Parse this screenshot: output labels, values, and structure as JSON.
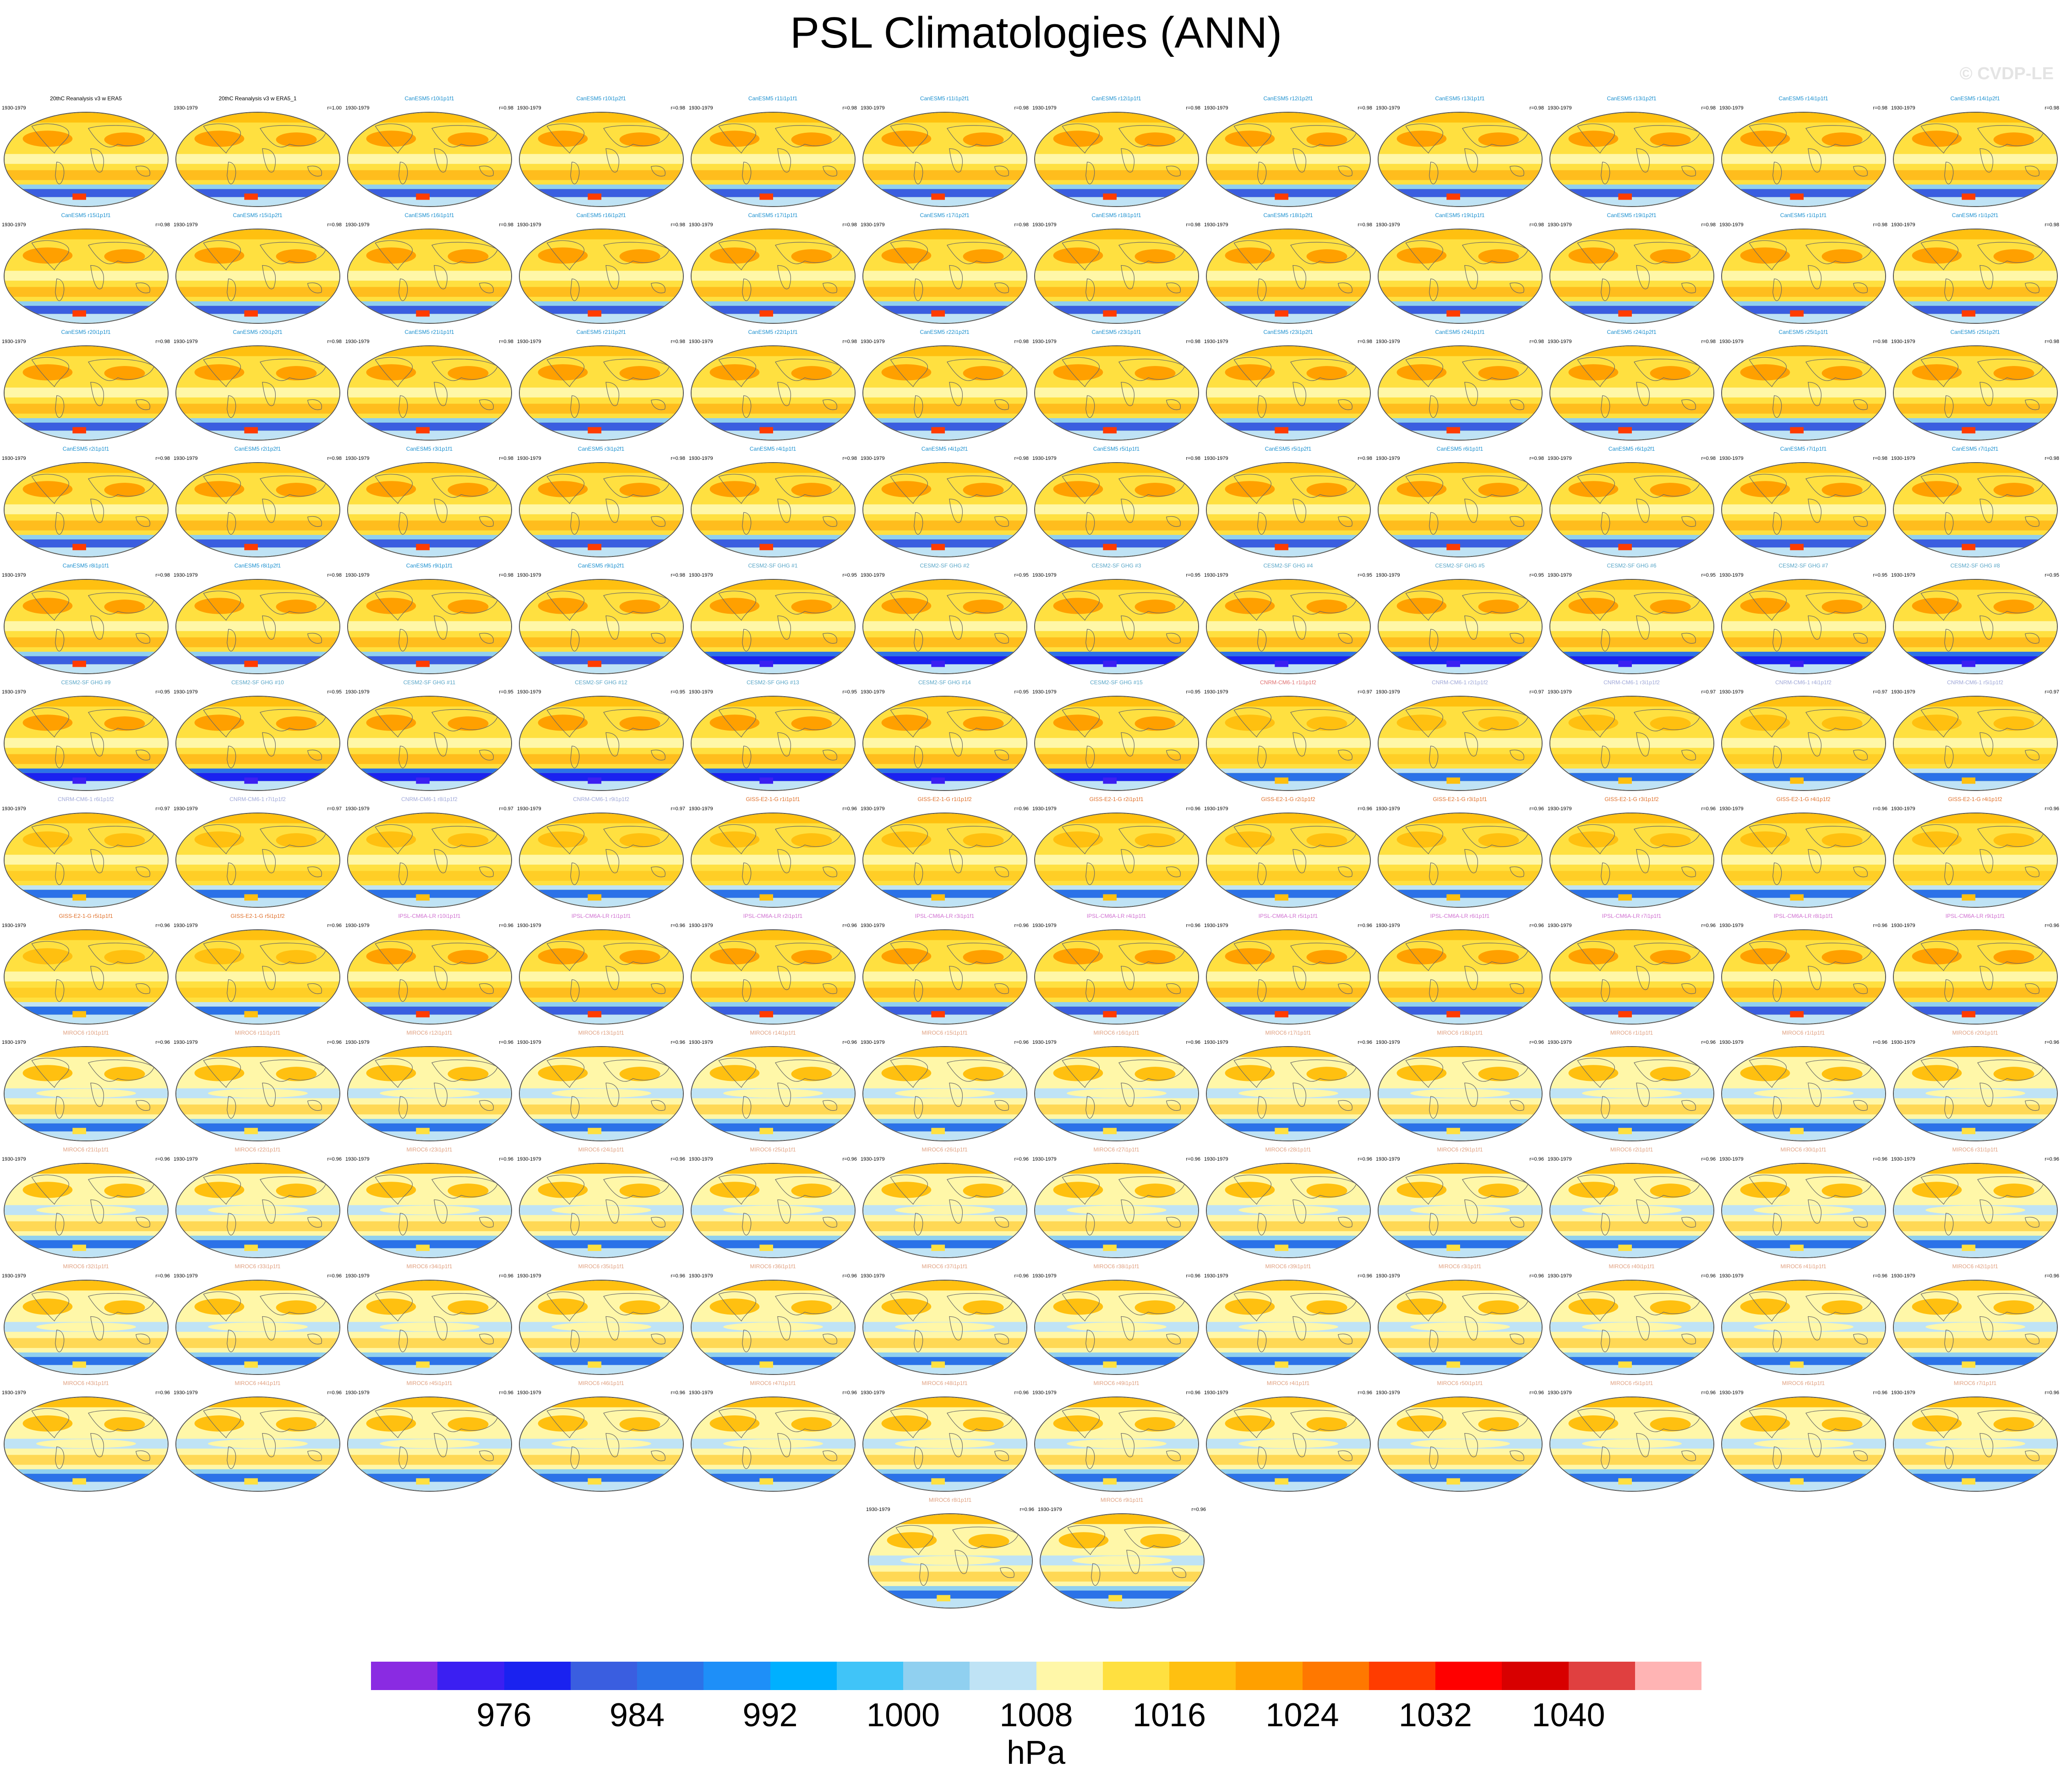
{
  "title": "PSL Climatologies (ANN)",
  "watermark": "© CVDP-LE",
  "period": "1930-1979",
  "colorbar": {
    "units": "hPa",
    "colors": [
      "#8a2be2",
      "#3b1ff2",
      "#1a22f0",
      "#3a5ee0",
      "#2b72e8",
      "#1e8ff8",
      "#00b0ff",
      "#40c4f8",
      "#90d0f0",
      "#bfe3f5",
      "#fff7a8",
      "#ffe040",
      "#ffc010",
      "#ffa000",
      "#ff7800",
      "#ff3c00",
      "#ff0000",
      "#d80000",
      "#e04040",
      "#ffb4b4"
    ],
    "labels": [
      "976",
      "984",
      "992",
      "1000",
      "1008",
      "1016",
      "1024",
      "1032",
      "1040"
    ]
  },
  "group_colors": {
    "obs": "#000000",
    "canesm": "#1a8fcf",
    "cesm": "#57a5c7",
    "cnrm": "#a0a8d8",
    "cnrm_first": "#e07070",
    "giss": "#e0702a",
    "ipsl": "#d070d0",
    "miroc": "#e0a080"
  },
  "panels": [
    {
      "title": "20thC Reanalysis v3 w ERA5",
      "corr": "",
      "group": "obs",
      "style": 0
    },
    {
      "title": "20thC Reanalysis v3 w ERA5_1",
      "corr": "r=1.00",
      "group": "obs",
      "style": 0
    },
    {
      "title": "CanESM5 r10i1p1f1",
      "corr": "r=0.98",
      "group": "canesm",
      "style": 0
    },
    {
      "title": "CanESM5 r10i1p2f1",
      "corr": "r=0.98",
      "group": "canesm",
      "style": 0
    },
    {
      "title": "CanESM5 r11i1p1f1",
      "corr": "r=0.98",
      "group": "canesm",
      "style": 0
    },
    {
      "title": "CanESM5 r11i1p2f1",
      "corr": "r=0.98",
      "group": "canesm",
      "style": 0
    },
    {
      "title": "CanESM5 r12i1p1f1",
      "corr": "r=0.98",
      "group": "canesm",
      "style": 0
    },
    {
      "title": "CanESM5 r12i1p2f1",
      "corr": "r=0.98",
      "group": "canesm",
      "style": 0
    },
    {
      "title": "CanESM5 r13i1p1f1",
      "corr": "r=0.98",
      "group": "canesm",
      "style": 0
    },
    {
      "title": "CanESM5 r13i1p2f1",
      "corr": "r=0.98",
      "group": "canesm",
      "style": 0
    },
    {
      "title": "CanESM5 r14i1p1f1",
      "corr": "r=0.98",
      "group": "canesm",
      "style": 0
    },
    {
      "title": "CanESM5 r14i1p2f1",
      "corr": "r=0.98",
      "group": "canesm",
      "style": 0
    },
    {
      "title": "CanESM5 r15i1p1f1",
      "corr": "r=0.98",
      "group": "canesm",
      "style": 0
    },
    {
      "title": "CanESM5 r15i1p2f1",
      "corr": "r=0.98",
      "group": "canesm",
      "style": 0
    },
    {
      "title": "CanESM5 r16i1p1f1",
      "corr": "r=0.98",
      "group": "canesm",
      "style": 0
    },
    {
      "title": "CanESM5 r16i1p2f1",
      "corr": "r=0.98",
      "group": "canesm",
      "style": 0
    },
    {
      "title": "CanESM5 r17i1p1f1",
      "corr": "r=0.98",
      "group": "canesm",
      "style": 0
    },
    {
      "title": "CanESM5 r17i1p2f1",
      "corr": "r=0.98",
      "group": "canesm",
      "style": 0
    },
    {
      "title": "CanESM5 r18i1p1f1",
      "corr": "r=0.98",
      "group": "canesm",
      "style": 0
    },
    {
      "title": "CanESM5 r18i1p2f1",
      "corr": "r=0.98",
      "group": "canesm",
      "style": 0
    },
    {
      "title": "CanESM5 r19i1p1f1",
      "corr": "r=0.98",
      "group": "canesm",
      "style": 0
    },
    {
      "title": "CanESM5 r19i1p2f1",
      "corr": "r=0.98",
      "group": "canesm",
      "style": 0
    },
    {
      "title": "CanESM5 r1i1p1f1",
      "corr": "r=0.98",
      "group": "canesm",
      "style": 0
    },
    {
      "title": "CanESM5 r1i1p2f1",
      "corr": "r=0.98",
      "group": "canesm",
      "style": 0
    },
    {
      "title": "CanESM5 r20i1p1f1",
      "corr": "r=0.98",
      "group": "canesm",
      "style": 0
    },
    {
      "title": "CanESM5 r20i1p2f1",
      "corr": "r=0.98",
      "group": "canesm",
      "style": 0
    },
    {
      "title": "CanESM5 r21i1p1f1",
      "corr": "r=0.98",
      "group": "canesm",
      "style": 0
    },
    {
      "title": "CanESM5 r21i1p2f1",
      "corr": "r=0.98",
      "group": "canesm",
      "style": 0
    },
    {
      "title": "CanESM5 r22i1p1f1",
      "corr": "r=0.98",
      "group": "canesm",
      "style": 0
    },
    {
      "title": "CanESM5 r22i1p2f1",
      "corr": "r=0.98",
      "group": "canesm",
      "style": 0
    },
    {
      "title": "CanESM5 r23i1p1f1",
      "corr": "r=0.98",
      "group": "canesm",
      "style": 0
    },
    {
      "title": "CanESM5 r23i1p2f1",
      "corr": "r=0.98",
      "group": "canesm",
      "style": 0
    },
    {
      "title": "CanESM5 r24i1p1f1",
      "corr": "r=0.98",
      "group": "canesm",
      "style": 0
    },
    {
      "title": "CanESM5 r24i1p2f1",
      "corr": "r=0.98",
      "group": "canesm",
      "style": 0
    },
    {
      "title": "CanESM5 r25i1p1f1",
      "corr": "r=0.98",
      "group": "canesm",
      "style": 0
    },
    {
      "title": "CanESM5 r25i1p2f1",
      "corr": "r=0.98",
      "group": "canesm",
      "style": 0
    },
    {
      "title": "CanESM5 r2i1p1f1",
      "corr": "r=0.98",
      "group": "canesm",
      "style": 0
    },
    {
      "title": "CanESM5 r2i1p2f1",
      "corr": "r=0.98",
      "group": "canesm",
      "style": 0
    },
    {
      "title": "CanESM5 r3i1p1f1",
      "corr": "r=0.98",
      "group": "canesm",
      "style": 0
    },
    {
      "title": "CanESM5 r3i1p2f1",
      "corr": "r=0.98",
      "group": "canesm",
      "style": 0
    },
    {
      "title": "CanESM5 r4i1p1f1",
      "corr": "r=0.98",
      "group": "canesm",
      "style": 0
    },
    {
      "title": "CanESM5 r4i1p2f1",
      "corr": "r=0.98",
      "group": "canesm",
      "style": 0
    },
    {
      "title": "CanESM5 r5i1p1f1",
      "corr": "r=0.98",
      "group": "canesm",
      "style": 0
    },
    {
      "title": "CanESM5 r5i1p2f1",
      "corr": "r=0.98",
      "group": "canesm",
      "style": 0
    },
    {
      "title": "CanESM5 r6i1p1f1",
      "corr": "r=0.98",
      "group": "canesm",
      "style": 0
    },
    {
      "title": "CanESM5 r6i1p2f1",
      "corr": "r=0.98",
      "group": "canesm",
      "style": 0
    },
    {
      "title": "CanESM5 r7i1p1f1",
      "corr": "r=0.98",
      "group": "canesm",
      "style": 0
    },
    {
      "title": "CanESM5 r7i1p2f1",
      "corr": "r=0.98",
      "group": "canesm",
      "style": 0
    },
    {
      "title": "CanESM5 r8i1p1f1",
      "corr": "r=0.98",
      "group": "canesm",
      "style": 0
    },
    {
      "title": "CanESM5 r8i1p2f1",
      "corr": "r=0.98",
      "group": "canesm",
      "style": 0
    },
    {
      "title": "CanESM5 r9i1p1f1",
      "corr": "r=0.98",
      "group": "canesm",
      "style": 0
    },
    {
      "title": "CanESM5 r9i1p2f1",
      "corr": "r=0.98",
      "group": "canesm",
      "style": 0
    },
    {
      "title": "CESM2-SF GHG #1",
      "corr": "r=0.95",
      "group": "cesm",
      "style": 1
    },
    {
      "title": "CESM2-SF GHG #2",
      "corr": "r=0.95",
      "group": "cesm",
      "style": 1
    },
    {
      "title": "CESM2-SF GHG #3",
      "corr": "r=0.95",
      "group": "cesm",
      "style": 1
    },
    {
      "title": "CESM2-SF GHG #4",
      "corr": "r=0.95",
      "group": "cesm",
      "style": 1
    },
    {
      "title": "CESM2-SF GHG #5",
      "corr": "r=0.95",
      "group": "cesm",
      "style": 1
    },
    {
      "title": "CESM2-SF GHG #6",
      "corr": "r=0.95",
      "group": "cesm",
      "style": 1
    },
    {
      "title": "CESM2-SF GHG #7",
      "corr": "r=0.95",
      "group": "cesm",
      "style": 1
    },
    {
      "title": "CESM2-SF GHG #8",
      "corr": "r=0.95",
      "group": "cesm",
      "style": 1
    },
    {
      "title": "CESM2-SF GHG #9",
      "corr": "r=0.95",
      "group": "cesm",
      "style": 1
    },
    {
      "title": "CESM2-SF GHG #10",
      "corr": "r=0.95",
      "group": "cesm",
      "style": 1
    },
    {
      "title": "CESM2-SF GHG #11",
      "corr": "r=0.95",
      "group": "cesm",
      "style": 1
    },
    {
      "title": "CESM2-SF GHG #12",
      "corr": "r=0.95",
      "group": "cesm",
      "style": 1
    },
    {
      "title": "CESM2-SF GHG #13",
      "corr": "r=0.95",
      "group": "cesm",
      "style": 1
    },
    {
      "title": "CESM2-SF GHG #14",
      "corr": "r=0.95",
      "group": "cesm",
      "style": 1
    },
    {
      "title": "CESM2-SF GHG #15",
      "corr": "r=0.95",
      "group": "cesm",
      "style": 1
    },
    {
      "title": "CNRM-CM6-1 r1i1p1f2",
      "corr": "r=0.97",
      "group": "cnrm_first",
      "style": 2
    },
    {
      "title": "CNRM-CM6-1 r2i1p1f2",
      "corr": "r=0.97",
      "group": "cnrm",
      "style": 2
    },
    {
      "title": "CNRM-CM6-1 r3i1p1f2",
      "corr": "r=0.97",
      "group": "cnrm",
      "style": 2
    },
    {
      "title": "CNRM-CM6-1 r4i1p1f2",
      "corr": "r=0.97",
      "group": "cnrm",
      "style": 2
    },
    {
      "title": "CNRM-CM6-1 r5i1p1f2",
      "corr": "r=0.97",
      "group": "cnrm",
      "style": 2
    },
    {
      "title": "CNRM-CM6-1 r6i1p1f2",
      "corr": "r=0.97",
      "group": "cnrm",
      "style": 2
    },
    {
      "title": "CNRM-CM6-1 r7i1p1f2",
      "corr": "r=0.97",
      "group": "cnrm",
      "style": 2
    },
    {
      "title": "CNRM-CM6-1 r8i1p1f2",
      "corr": "r=0.97",
      "group": "cnrm",
      "style": 2
    },
    {
      "title": "CNRM-CM6-1 r9i1p1f2",
      "corr": "r=0.97",
      "group": "cnrm",
      "style": 2
    },
    {
      "title": "GISS-E2-1-G r1i1p1f1",
      "corr": "r=0.96",
      "group": "giss",
      "style": 2
    },
    {
      "title": "GISS-E2-1-G r1i1p1f2",
      "corr": "r=0.96",
      "group": "giss",
      "style": 2
    },
    {
      "title": "GISS-E2-1-G r2i1p1f1",
      "corr": "r=0.96",
      "group": "giss",
      "style": 2
    },
    {
      "title": "GISS-E2-1-G r2i1p1f2",
      "corr": "r=0.96",
      "group": "giss",
      "style": 2
    },
    {
      "title": "GISS-E2-1-G r3i1p1f1",
      "corr": "r=0.96",
      "group": "giss",
      "style": 2
    },
    {
      "title": "GISS-E2-1-G r3i1p1f2",
      "corr": "r=0.96",
      "group": "giss",
      "style": 2
    },
    {
      "title": "GISS-E2-1-G r4i1p1f2",
      "corr": "r=0.96",
      "group": "giss",
      "style": 2
    },
    {
      "title": "GISS-E2-1-G r4i1p1f2",
      "corr": "r=0.96",
      "group": "giss",
      "style": 2
    },
    {
      "title": "GISS-E2-1-G r5i1p1f1",
      "corr": "r=0.96",
      "group": "giss",
      "style": 2
    },
    {
      "title": "GISS-E2-1-G r5i1p1f2",
      "corr": "r=0.96",
      "group": "giss",
      "style": 2
    },
    {
      "title": "IPSL-CM6A-LR r10i1p1f1",
      "corr": "r=0.96",
      "group": "ipsl",
      "style": 0
    },
    {
      "title": "IPSL-CM6A-LR r1i1p1f1",
      "corr": "r=0.96",
      "group": "ipsl",
      "style": 0
    },
    {
      "title": "IPSL-CM6A-LR r2i1p1f1",
      "corr": "r=0.96",
      "group": "ipsl",
      "style": 0
    },
    {
      "title": "IPSL-CM6A-LR r3i1p1f1",
      "corr": "r=0.96",
      "group": "ipsl",
      "style": 0
    },
    {
      "title": "IPSL-CM6A-LR r4i1p1f1",
      "corr": "r=0.96",
      "group": "ipsl",
      "style": 0
    },
    {
      "title": "IPSL-CM6A-LR r5i1p1f1",
      "corr": "r=0.96",
      "group": "ipsl",
      "style": 0
    },
    {
      "title": "IPSL-CM6A-LR r6i1p1f1",
      "corr": "r=0.96",
      "group": "ipsl",
      "style": 0
    },
    {
      "title": "IPSL-CM6A-LR r7i1p1f1",
      "corr": "r=0.96",
      "group": "ipsl",
      "style": 0
    },
    {
      "title": "IPSL-CM6A-LR r8i1p1f1",
      "corr": "r=0.96",
      "group": "ipsl",
      "style": 0
    },
    {
      "title": "IPSL-CM6A-LR r9i1p1f1",
      "corr": "r=0.96",
      "group": "ipsl",
      "style": 0
    },
    {
      "title": "MIROC6 r10i1p1f1",
      "corr": "r=0.96",
      "group": "miroc",
      "style": 3
    },
    {
      "title": "MIROC6 r11i1p1f1",
      "corr": "r=0.96",
      "group": "miroc",
      "style": 3
    },
    {
      "title": "MIROC6 r12i1p1f1",
      "corr": "r=0.96",
      "group": "miroc",
      "style": 3
    },
    {
      "title": "MIROC6 r13i1p1f1",
      "corr": "r=0.96",
      "group": "miroc",
      "style": 3
    },
    {
      "title": "MIROC6 r14i1p1f1",
      "corr": "r=0.96",
      "group": "miroc",
      "style": 3
    },
    {
      "title": "MIROC6 r15i1p1f1",
      "corr": "r=0.96",
      "group": "miroc",
      "style": 3
    },
    {
      "title": "MIROC6 r16i1p1f1",
      "corr": "r=0.96",
      "group": "miroc",
      "style": 3
    },
    {
      "title": "MIROC6 r17i1p1f1",
      "corr": "r=0.96",
      "group": "miroc",
      "style": 3
    },
    {
      "title": "MIROC6 r18i1p1f1",
      "corr": "r=0.96",
      "group": "miroc",
      "style": 3
    },
    {
      "title": "MIROC6 r1i1p1f1",
      "corr": "r=0.96",
      "group": "miroc",
      "style": 3
    },
    {
      "title": "MIROC6 r1i1p1f1",
      "corr": "r=0.96",
      "group": "miroc",
      "style": 3
    },
    {
      "title": "MIROC6 r20i1p1f1",
      "corr": "r=0.96",
      "group": "miroc",
      "style": 3
    },
    {
      "title": "MIROC6 r21i1p1f1",
      "corr": "r=0.96",
      "group": "miroc",
      "style": 3
    },
    {
      "title": "MIROC6 r22i1p1f1",
      "corr": "r=0.96",
      "group": "miroc",
      "style": 3
    },
    {
      "title": "MIROC6 r23i1p1f1",
      "corr": "r=0.96",
      "group": "miroc",
      "style": 3
    },
    {
      "title": "MIROC6 r24i1p1f1",
      "corr": "r=0.96",
      "group": "miroc",
      "style": 3
    },
    {
      "title": "MIROC6 r25i1p1f1",
      "corr": "r=0.96",
      "group": "miroc",
      "style": 3
    },
    {
      "title": "MIROC6 r26i1p1f1",
      "corr": "r=0.96",
      "group": "miroc",
      "style": 3
    },
    {
      "title": "MIROC6 r27i1p1f1",
      "corr": "r=0.96",
      "group": "miroc",
      "style": 3
    },
    {
      "title": "MIROC6 r28i1p1f1",
      "corr": "r=0.96",
      "group": "miroc",
      "style": 3
    },
    {
      "title": "MIROC6 r29i1p1f1",
      "corr": "r=0.96",
      "group": "miroc",
      "style": 3
    },
    {
      "title": "MIROC6 r2i1p1f1",
      "corr": "r=0.96",
      "group": "miroc",
      "style": 3
    },
    {
      "title": "MIROC6 r30i1p1f1",
      "corr": "r=0.96",
      "group": "miroc",
      "style": 3
    },
    {
      "title": "MIROC6 r31i1p1f1",
      "corr": "r=0.96",
      "group": "miroc",
      "style": 3
    },
    {
      "title": "MIROC6 r32i1p1f1",
      "corr": "r=0.96",
      "group": "miroc",
      "style": 3
    },
    {
      "title": "MIROC6 r33i1p1f1",
      "corr": "r=0.96",
      "group": "miroc",
      "style": 3
    },
    {
      "title": "MIROC6 r34i1p1f1",
      "corr": "r=0.96",
      "group": "miroc",
      "style": 3
    },
    {
      "title": "MIROC6 r35i1p1f1",
      "corr": "r=0.96",
      "group": "miroc",
      "style": 3
    },
    {
      "title": "MIROC6 r36i1p1f1",
      "corr": "r=0.96",
      "group": "miroc",
      "style": 3
    },
    {
      "title": "MIROC6 r37i1p1f1",
      "corr": "r=0.96",
      "group": "miroc",
      "style": 3
    },
    {
      "title": "MIROC6 r38i1p1f1",
      "corr": "r=0.96",
      "group": "miroc",
      "style": 3
    },
    {
      "title": "MIROC6 r39i1p1f1",
      "corr": "r=0.96",
      "group": "miroc",
      "style": 3
    },
    {
      "title": "MIROC6 r3i1p1f1",
      "corr": "r=0.96",
      "group": "miroc",
      "style": 3
    },
    {
      "title": "MIROC6 r40i1p1f1",
      "corr": "r=0.96",
      "group": "miroc",
      "style": 3
    },
    {
      "title": "MIROC6 r41i1p1f1",
      "corr": "r=0.96",
      "group": "miroc",
      "style": 3
    },
    {
      "title": "MIROC6 r42i1p1f1",
      "corr": "r=0.96",
      "group": "miroc",
      "style": 3
    },
    {
      "title": "MIROC6 r43i1p1f1",
      "corr": "r=0.96",
      "group": "miroc",
      "style": 3
    },
    {
      "title": "MIROC6 r44i1p1f1",
      "corr": "r=0.96",
      "group": "miroc",
      "style": 3
    },
    {
      "title": "MIROC6 r45i1p1f1",
      "corr": "r=0.96",
      "group": "miroc",
      "style": 3
    },
    {
      "title": "MIROC6 r46i1p1f1",
      "corr": "r=0.96",
      "group": "miroc",
      "style": 3
    },
    {
      "title": "MIROC6 r47i1p1f1",
      "corr": "r=0.96",
      "group": "miroc",
      "style": 3
    },
    {
      "title": "MIROC6 r48i1p1f1",
      "corr": "r=0.96",
      "group": "miroc",
      "style": 3
    },
    {
      "title": "MIROC6 r49i1p1f1",
      "corr": "r=0.96",
      "group": "miroc",
      "style": 3
    },
    {
      "title": "MIROC6 r4i1p1f1",
      "corr": "r=0.96",
      "group": "miroc",
      "style": 3
    },
    {
      "title": "MIROC6 r50i1p1f1",
      "corr": "r=0.96",
      "group": "miroc",
      "style": 3
    },
    {
      "title": "MIROC6 r5i1p1f1",
      "corr": "r=0.96",
      "group": "miroc",
      "style": 3
    },
    {
      "title": "MIROC6 r6i1p1f1",
      "corr": "r=0.96",
      "group": "miroc",
      "style": 3
    },
    {
      "title": "MIROC6 r7i1p1f1",
      "corr": "r=0.96",
      "group": "miroc",
      "style": 3
    },
    {
      "title": "MIROC6 r8i1p1f1",
      "corr": "r=0.96",
      "group": "miroc",
      "style": 3
    },
    {
      "title": "MIROC6 r9i1p1f1",
      "corr": "r=0.96",
      "group": "miroc",
      "style": 3
    }
  ]
}
